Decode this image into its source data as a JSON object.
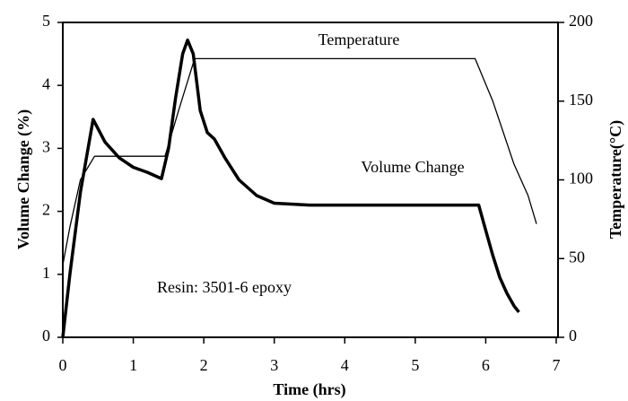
{
  "chart_data": {
    "type": "line",
    "xlabel": "Time (hrs)",
    "ylabel": "Volume Change (%)",
    "y2label": "Temperature(°C)",
    "xlim": [
      0,
      7
    ],
    "xticks": [
      0,
      1,
      2,
      3,
      4,
      5,
      6,
      7
    ],
    "ylim": [
      0,
      5
    ],
    "yticks": [
      0,
      1,
      2,
      3,
      4,
      5
    ],
    "y2lim": [
      0,
      200
    ],
    "y2ticks": [
      0,
      50,
      100,
      150,
      200
    ],
    "grid": false,
    "annotations": [
      "Temperature",
      "Volume Change",
      "Resin: 3501-6 epoxy"
    ],
    "series": [
      {
        "name": "Volume Change",
        "color": "#000000",
        "width": 3.5,
        "x": [
          0,
          0.1,
          0.25,
          0.43,
          0.6,
          0.8,
          1.0,
          1.2,
          1.4,
          1.5,
          1.6,
          1.7,
          1.77,
          1.85,
          1.95,
          2.05,
          2.15,
          2.3,
          2.5,
          2.75,
          3.0,
          3.5,
          4.0,
          5.0,
          5.9,
          6.0,
          6.1,
          6.2,
          6.3,
          6.4,
          6.47
        ],
        "values": [
          0,
          1.0,
          2.3,
          3.46,
          3.1,
          2.85,
          2.7,
          2.62,
          2.52,
          3.0,
          3.8,
          4.5,
          4.72,
          4.5,
          3.6,
          3.25,
          3.15,
          2.85,
          2.5,
          2.25,
          2.13,
          2.1,
          2.1,
          2.1,
          2.1,
          1.7,
          1.3,
          0.95,
          0.7,
          0.5,
          0.4
        ]
      },
      {
        "name": "Temperature",
        "color": "#000000",
        "width": 1.3,
        "axis": "y2",
        "x": [
          0,
          0.1,
          0.25,
          0.45,
          1.45,
          1.65,
          1.87,
          5.85,
          6.1,
          6.4,
          6.6,
          6.72
        ],
        "values": [
          46,
          70,
          100,
          115,
          115,
          145,
          177,
          177,
          150,
          110,
          90,
          72
        ]
      }
    ]
  }
}
